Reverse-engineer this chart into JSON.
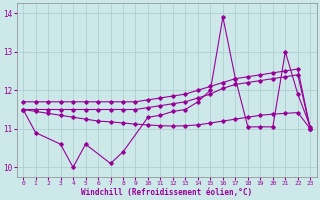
{
  "xlabel": "Windchill (Refroidissement éolien,°C)",
  "bg_color": "#cce8e8",
  "grid_color": "#aacccc",
  "line_color": "#990099",
  "ylim": [
    9.75,
    14.25
  ],
  "yticks": [
    10,
    11,
    12,
    13,
    14
  ],
  "xlim": [
    -0.5,
    23.5
  ],
  "xticks": [
    0,
    1,
    2,
    3,
    4,
    5,
    6,
    7,
    8,
    9,
    10,
    11,
    12,
    13,
    14,
    15,
    16,
    17,
    18,
    19,
    20,
    21,
    22,
    23
  ],
  "line_upper": {
    "x": [
      0,
      1,
      2,
      3,
      4,
      5,
      6,
      7,
      8,
      9,
      10,
      11,
      12,
      13,
      14,
      15,
      16,
      17,
      18,
      19,
      20,
      21,
      22,
      23
    ],
    "y": [
      11.7,
      11.7,
      11.7,
      11.7,
      11.7,
      11.7,
      11.7,
      11.7,
      11.7,
      11.7,
      11.75,
      11.8,
      11.85,
      11.9,
      12.0,
      12.1,
      12.2,
      12.3,
      12.35,
      12.4,
      12.45,
      12.5,
      12.55,
      11.0
    ]
  },
  "line_mid_upper": {
    "x": [
      0,
      1,
      2,
      3,
      4,
      5,
      6,
      7,
      8,
      9,
      10,
      11,
      12,
      13,
      14,
      15,
      16,
      17,
      18,
      19,
      20,
      21,
      22,
      23
    ],
    "y": [
      11.5,
      11.5,
      11.5,
      11.5,
      11.5,
      11.5,
      11.5,
      11.5,
      11.5,
      11.5,
      11.55,
      11.6,
      11.65,
      11.7,
      11.8,
      11.9,
      12.05,
      12.15,
      12.2,
      12.25,
      12.3,
      12.35,
      12.4,
      11.0
    ]
  },
  "line_mid_lower": {
    "x": [
      0,
      1,
      2,
      3,
      4,
      5,
      6,
      7,
      8,
      9,
      10,
      11,
      12,
      13,
      14,
      15,
      16,
      17,
      18,
      19,
      20,
      21,
      22,
      23
    ],
    "y": [
      11.5,
      11.45,
      11.4,
      11.35,
      11.3,
      11.25,
      11.2,
      11.18,
      11.15,
      11.12,
      11.1,
      11.08,
      11.07,
      11.08,
      11.1,
      11.15,
      11.2,
      11.25,
      11.3,
      11.35,
      11.38,
      11.4,
      11.42,
      11.0
    ]
  },
  "line_zigzag": {
    "x": [
      0,
      1,
      3,
      4,
      5,
      7,
      8,
      10,
      11,
      12,
      13,
      14,
      15,
      16,
      17,
      18,
      19,
      20,
      21,
      22,
      23
    ],
    "y": [
      11.5,
      10.9,
      10.6,
      10.0,
      10.6,
      10.1,
      10.4,
      11.3,
      11.35,
      11.45,
      11.5,
      11.7,
      12.0,
      13.9,
      12.3,
      11.05,
      11.05,
      11.05,
      13.0,
      11.9,
      11.05
    ]
  }
}
